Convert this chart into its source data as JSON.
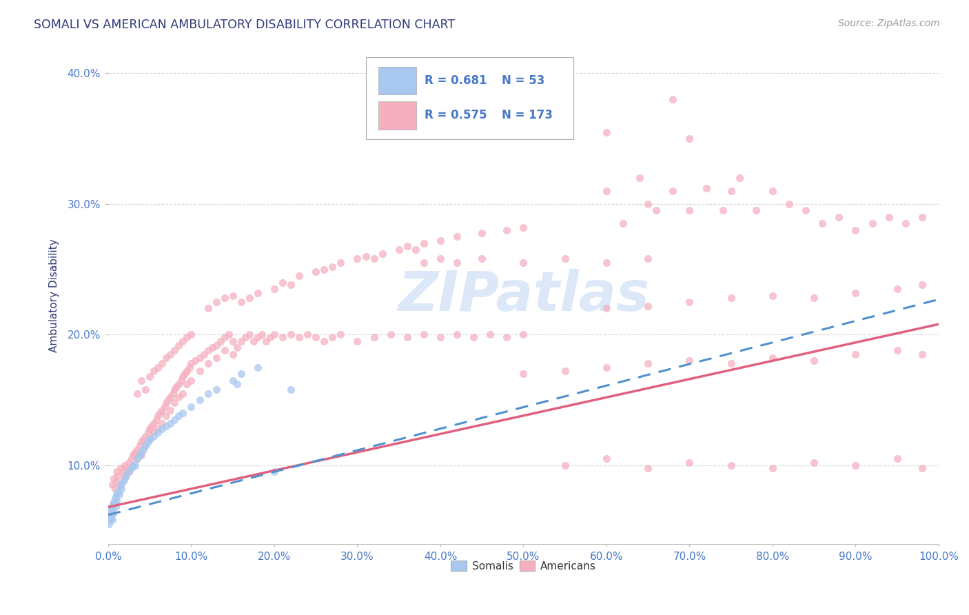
{
  "title": "SOMALI VS AMERICAN AMBULATORY DISABILITY CORRELATION CHART",
  "source": "Source: ZipAtlas.com",
  "ylabel": "Ambulatory Disability",
  "xlim": [
    0.0,
    1.0
  ],
  "ylim": [
    0.04,
    0.42
  ],
  "x_ticks": [
    0.0,
    0.1,
    0.2,
    0.3,
    0.4,
    0.5,
    0.6,
    0.7,
    0.8,
    0.9,
    1.0
  ],
  "y_ticks": [
    0.1,
    0.2,
    0.3,
    0.4
  ],
  "somali_R": 0.681,
  "somali_N": 53,
  "american_R": 0.575,
  "american_N": 173,
  "somali_color": "#a8c8f0",
  "american_color": "#f5b0c0",
  "somali_line_color": "#5090d0",
  "american_line_color": "#e06080",
  "background_color": "#ffffff",
  "grid_color": "#d0d0d0",
  "title_color": "#303878",
  "axis_label_color": "#303878",
  "tick_color": "#4878c8",
  "legend_R_color": "#4878c8",
  "watermark_color": "#dce8f8",
  "somali_line_intercept": 0.062,
  "somali_line_slope": 0.165,
  "american_line_intercept": 0.068,
  "american_line_slope": 0.14,
  "somali_scatter": [
    [
      0.001,
      0.055
    ],
    [
      0.001,
      0.06
    ],
    [
      0.002,
      0.062
    ],
    [
      0.002,
      0.058
    ],
    [
      0.003,
      0.06
    ],
    [
      0.003,
      0.065
    ],
    [
      0.004,
      0.063
    ],
    [
      0.004,
      0.068
    ],
    [
      0.005,
      0.065
    ],
    [
      0.005,
      0.058
    ],
    [
      0.006,
      0.07
    ],
    [
      0.006,
      0.063
    ],
    [
      0.007,
      0.072
    ],
    [
      0.008,
      0.075
    ],
    [
      0.009,
      0.068
    ],
    [
      0.01,
      0.078
    ],
    [
      0.01,
      0.073
    ],
    [
      0.012,
      0.08
    ],
    [
      0.013,
      0.078
    ],
    [
      0.015,
      0.085
    ],
    [
      0.016,
      0.082
    ],
    [
      0.018,
      0.088
    ],
    [
      0.02,
      0.09
    ],
    [
      0.022,
      0.092
    ],
    [
      0.025,
      0.095
    ],
    [
      0.028,
      0.098
    ],
    [
      0.03,
      0.1
    ],
    [
      0.032,
      0.1
    ],
    [
      0.035,
      0.105
    ],
    [
      0.038,
      0.108
    ],
    [
      0.04,
      0.11
    ],
    [
      0.042,
      0.112
    ],
    [
      0.045,
      0.115
    ],
    [
      0.048,
      0.118
    ],
    [
      0.05,
      0.12
    ],
    [
      0.055,
      0.122
    ],
    [
      0.06,
      0.125
    ],
    [
      0.065,
      0.128
    ],
    [
      0.07,
      0.13
    ],
    [
      0.075,
      0.132
    ],
    [
      0.08,
      0.135
    ],
    [
      0.085,
      0.138
    ],
    [
      0.09,
      0.14
    ],
    [
      0.1,
      0.145
    ],
    [
      0.11,
      0.15
    ],
    [
      0.12,
      0.155
    ],
    [
      0.13,
      0.158
    ],
    [
      0.15,
      0.165
    ],
    [
      0.155,
      0.162
    ],
    [
      0.16,
      0.17
    ],
    [
      0.18,
      0.175
    ],
    [
      0.2,
      0.095
    ],
    [
      0.22,
      0.158
    ]
  ],
  "american_scatter": [
    [
      0.005,
      0.085
    ],
    [
      0.007,
      0.09
    ],
    [
      0.008,
      0.082
    ],
    [
      0.01,
      0.088
    ],
    [
      0.01,
      0.095
    ],
    [
      0.012,
      0.092
    ],
    [
      0.015,
      0.098
    ],
    [
      0.015,
      0.085
    ],
    [
      0.018,
      0.095
    ],
    [
      0.02,
      0.1
    ],
    [
      0.02,
      0.092
    ],
    [
      0.022,
      0.098
    ],
    [
      0.025,
      0.102
    ],
    [
      0.025,
      0.095
    ],
    [
      0.028,
      0.105
    ],
    [
      0.03,
      0.108
    ],
    [
      0.03,
      0.1
    ],
    [
      0.032,
      0.11
    ],
    [
      0.035,
      0.112
    ],
    [
      0.035,
      0.105
    ],
    [
      0.038,
      0.115
    ],
    [
      0.04,
      0.118
    ],
    [
      0.04,
      0.108
    ],
    [
      0.042,
      0.12
    ],
    [
      0.045,
      0.122
    ],
    [
      0.045,
      0.115
    ],
    [
      0.048,
      0.125
    ],
    [
      0.05,
      0.128
    ],
    [
      0.05,
      0.12
    ],
    [
      0.052,
      0.13
    ],
    [
      0.055,
      0.132
    ],
    [
      0.055,
      0.125
    ],
    [
      0.058,
      0.135
    ],
    [
      0.06,
      0.138
    ],
    [
      0.06,
      0.128
    ],
    [
      0.062,
      0.14
    ],
    [
      0.065,
      0.142
    ],
    [
      0.065,
      0.132
    ],
    [
      0.068,
      0.145
    ],
    [
      0.07,
      0.148
    ],
    [
      0.07,
      0.138
    ],
    [
      0.072,
      0.15
    ],
    [
      0.075,
      0.152
    ],
    [
      0.075,
      0.142
    ],
    [
      0.078,
      0.155
    ],
    [
      0.08,
      0.158
    ],
    [
      0.08,
      0.148
    ],
    [
      0.082,
      0.16
    ],
    [
      0.085,
      0.162
    ],
    [
      0.085,
      0.152
    ],
    [
      0.088,
      0.165
    ],
    [
      0.09,
      0.168
    ],
    [
      0.09,
      0.155
    ],
    [
      0.092,
      0.17
    ],
    [
      0.095,
      0.172
    ],
    [
      0.095,
      0.162
    ],
    [
      0.098,
      0.175
    ],
    [
      0.1,
      0.178
    ],
    [
      0.1,
      0.165
    ],
    [
      0.105,
      0.18
    ],
    [
      0.11,
      0.182
    ],
    [
      0.11,
      0.172
    ],
    [
      0.115,
      0.185
    ],
    [
      0.12,
      0.188
    ],
    [
      0.12,
      0.178
    ],
    [
      0.125,
      0.19
    ],
    [
      0.13,
      0.192
    ],
    [
      0.13,
      0.182
    ],
    [
      0.135,
      0.195
    ],
    [
      0.14,
      0.198
    ],
    [
      0.14,
      0.188
    ],
    [
      0.145,
      0.2
    ],
    [
      0.15,
      0.195
    ],
    [
      0.15,
      0.185
    ],
    [
      0.155,
      0.19
    ],
    [
      0.16,
      0.195
    ],
    [
      0.165,
      0.198
    ],
    [
      0.17,
      0.2
    ],
    [
      0.175,
      0.195
    ],
    [
      0.18,
      0.198
    ],
    [
      0.185,
      0.2
    ],
    [
      0.19,
      0.195
    ],
    [
      0.195,
      0.198
    ],
    [
      0.2,
      0.2
    ],
    [
      0.21,
      0.198
    ],
    [
      0.22,
      0.2
    ],
    [
      0.23,
      0.198
    ],
    [
      0.24,
      0.2
    ],
    [
      0.25,
      0.198
    ],
    [
      0.26,
      0.195
    ],
    [
      0.27,
      0.198
    ],
    [
      0.28,
      0.2
    ],
    [
      0.3,
      0.195
    ],
    [
      0.32,
      0.198
    ],
    [
      0.34,
      0.2
    ],
    [
      0.36,
      0.198
    ],
    [
      0.38,
      0.2
    ],
    [
      0.4,
      0.198
    ],
    [
      0.42,
      0.2
    ],
    [
      0.44,
      0.198
    ],
    [
      0.46,
      0.2
    ],
    [
      0.48,
      0.198
    ],
    [
      0.5,
      0.2
    ],
    [
      0.035,
      0.155
    ],
    [
      0.04,
      0.165
    ],
    [
      0.045,
      0.158
    ],
    [
      0.05,
      0.168
    ],
    [
      0.055,
      0.172
    ],
    [
      0.06,
      0.175
    ],
    [
      0.065,
      0.178
    ],
    [
      0.07,
      0.182
    ],
    [
      0.075,
      0.185
    ],
    [
      0.08,
      0.188
    ],
    [
      0.085,
      0.192
    ],
    [
      0.09,
      0.195
    ],
    [
      0.095,
      0.198
    ],
    [
      0.1,
      0.2
    ],
    [
      0.12,
      0.22
    ],
    [
      0.13,
      0.225
    ],
    [
      0.14,
      0.228
    ],
    [
      0.15,
      0.23
    ],
    [
      0.16,
      0.225
    ],
    [
      0.17,
      0.228
    ],
    [
      0.18,
      0.232
    ],
    [
      0.2,
      0.235
    ],
    [
      0.21,
      0.24
    ],
    [
      0.22,
      0.238
    ],
    [
      0.23,
      0.245
    ],
    [
      0.25,
      0.248
    ],
    [
      0.26,
      0.25
    ],
    [
      0.27,
      0.252
    ],
    [
      0.28,
      0.255
    ],
    [
      0.3,
      0.258
    ],
    [
      0.31,
      0.26
    ],
    [
      0.32,
      0.258
    ],
    [
      0.33,
      0.262
    ],
    [
      0.35,
      0.265
    ],
    [
      0.36,
      0.268
    ],
    [
      0.37,
      0.265
    ],
    [
      0.38,
      0.27
    ],
    [
      0.4,
      0.272
    ],
    [
      0.42,
      0.275
    ],
    [
      0.45,
      0.278
    ],
    [
      0.48,
      0.28
    ],
    [
      0.5,
      0.282
    ],
    [
      0.38,
      0.255
    ],
    [
      0.4,
      0.258
    ],
    [
      0.42,
      0.255
    ],
    [
      0.45,
      0.258
    ],
    [
      0.5,
      0.255
    ],
    [
      0.55,
      0.258
    ],
    [
      0.6,
      0.255
    ],
    [
      0.65,
      0.258
    ],
    [
      0.5,
      0.17
    ],
    [
      0.55,
      0.172
    ],
    [
      0.6,
      0.175
    ],
    [
      0.65,
      0.178
    ],
    [
      0.7,
      0.18
    ],
    [
      0.75,
      0.178
    ],
    [
      0.8,
      0.182
    ],
    [
      0.85,
      0.18
    ],
    [
      0.9,
      0.185
    ],
    [
      0.95,
      0.188
    ],
    [
      0.98,
      0.185
    ],
    [
      0.6,
      0.22
    ],
    [
      0.65,
      0.222
    ],
    [
      0.7,
      0.225
    ],
    [
      0.75,
      0.228
    ],
    [
      0.8,
      0.23
    ],
    [
      0.85,
      0.228
    ],
    [
      0.9,
      0.232
    ],
    [
      0.95,
      0.235
    ],
    [
      0.98,
      0.238
    ],
    [
      0.6,
      0.31
    ],
    [
      0.62,
      0.285
    ],
    [
      0.64,
      0.32
    ],
    [
      0.65,
      0.3
    ],
    [
      0.66,
      0.295
    ],
    [
      0.68,
      0.31
    ],
    [
      0.7,
      0.295
    ],
    [
      0.72,
      0.312
    ],
    [
      0.74,
      0.295
    ],
    [
      0.75,
      0.31
    ],
    [
      0.76,
      0.32
    ],
    [
      0.78,
      0.295
    ],
    [
      0.8,
      0.31
    ],
    [
      0.82,
      0.3
    ],
    [
      0.84,
      0.295
    ],
    [
      0.86,
      0.285
    ],
    [
      0.88,
      0.29
    ],
    [
      0.9,
      0.28
    ],
    [
      0.92,
      0.285
    ],
    [
      0.94,
      0.29
    ],
    [
      0.96,
      0.285
    ],
    [
      0.98,
      0.29
    ],
    [
      0.6,
      0.355
    ],
    [
      0.68,
      0.38
    ],
    [
      0.7,
      0.35
    ],
    [
      0.55,
      0.1
    ],
    [
      0.6,
      0.105
    ],
    [
      0.65,
      0.098
    ],
    [
      0.7,
      0.102
    ],
    [
      0.75,
      0.1
    ],
    [
      0.8,
      0.098
    ],
    [
      0.85,
      0.102
    ],
    [
      0.9,
      0.1
    ],
    [
      0.95,
      0.105
    ],
    [
      0.98,
      0.098
    ]
  ]
}
